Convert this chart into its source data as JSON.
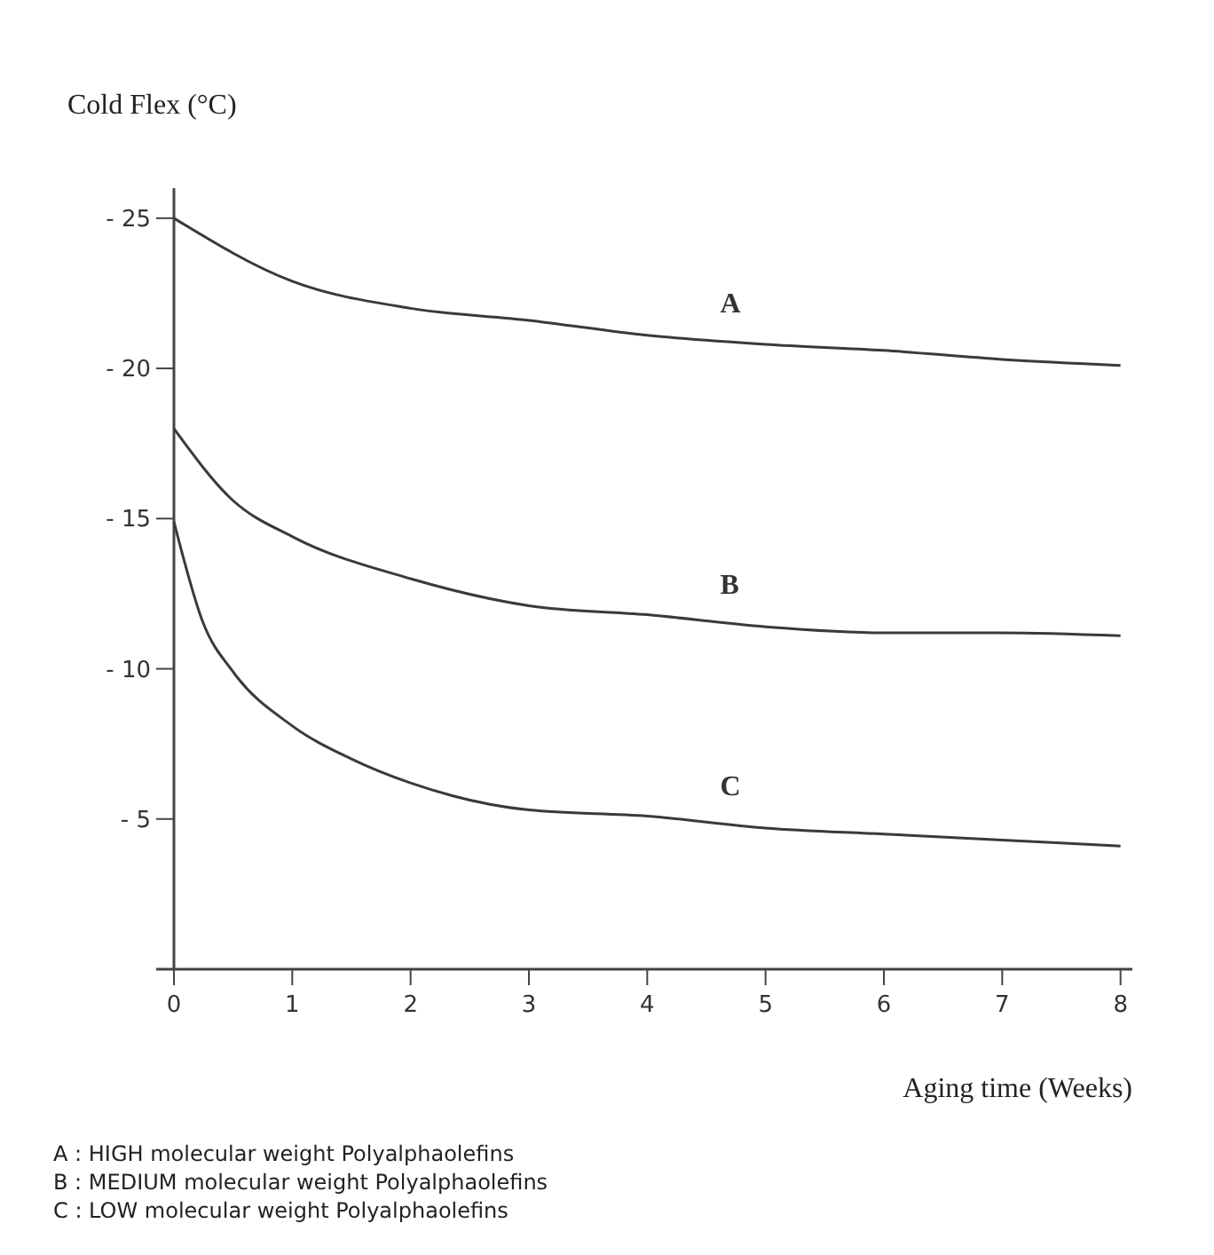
{
  "chart_data": {
    "type": "line",
    "ylabel": "Cold Flex (°C)",
    "xlabel": "Aging time (Weeks)",
    "xlim": [
      0,
      8.1
    ],
    "xticks": [
      0,
      1,
      2,
      3,
      4,
      5,
      6,
      7,
      8
    ],
    "ylim": [
      0,
      -26
    ],
    "yticks": [
      {
        "value": -25,
        "label": "- 25"
      },
      {
        "value": -20,
        "label": "- 20"
      },
      {
        "value": -15,
        "label": "- 15"
      },
      {
        "value": -10,
        "label": "- 10"
      },
      {
        "value": -5,
        "label": "- 5"
      },
      {
        "value": 0,
        "label": null
      }
    ],
    "grid": false,
    "marker": "none",
    "line_style": "solid",
    "series": [
      {
        "name": "A",
        "color": "#3a3a3a",
        "x": [
          0,
          1,
          2,
          3,
          4,
          5,
          6,
          7,
          8
        ],
        "values": [
          -25,
          -22.9,
          -22,
          -21.6,
          -21.1,
          -20.8,
          -20.6,
          -20.3,
          -20.1
        ]
      },
      {
        "name": "B",
        "color": "#3a3a3a",
        "x": [
          0,
          0.5,
          1,
          2,
          3,
          4,
          5,
          6,
          7,
          8
        ],
        "values": [
          -18,
          -15.6,
          -14.4,
          -13,
          -12.1,
          -11.8,
          -11.4,
          -11.2,
          -11.2,
          -11.1
        ]
      },
      {
        "name": "C",
        "color": "#3a3a3a",
        "x": [
          0,
          0.25,
          0.5,
          1,
          1.5,
          2,
          3,
          4,
          5,
          6,
          7,
          8
        ],
        "values": [
          -14.9,
          -11.5,
          -9.9,
          -8.1,
          -7,
          -6.2,
          -5.3,
          -5.1,
          -4.7,
          -4.5,
          -4.3,
          -4.1
        ]
      }
    ],
    "annotations": [
      "A :  HIGH  molecular weight Polyalphaolefins",
      "B :  MEDIUM  molecular weight Polyalphaolefins",
      "C :  LOW  molecular weight Polyalphaolefins"
    ]
  }
}
